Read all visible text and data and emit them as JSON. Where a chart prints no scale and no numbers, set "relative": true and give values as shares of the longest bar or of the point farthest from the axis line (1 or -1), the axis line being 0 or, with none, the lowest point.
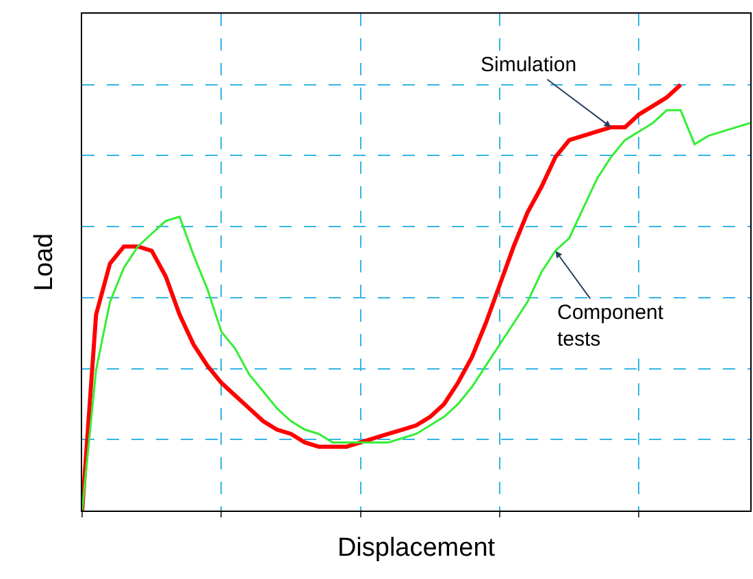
{
  "chart_data": {
    "type": "line",
    "relative": true,
    "xlabel": "Displacement",
    "ylabel": "Load",
    "grid": true,
    "legend": false,
    "marker": "none",
    "line_style": "solid",
    "categories": [
      null,
      null,
      null,
      null,
      null,
      null,
      null,
      null,
      null,
      null,
      null,
      null,
      null,
      null,
      null,
      null,
      null,
      null,
      null,
      null,
      null,
      null,
      null,
      null,
      null,
      null,
      null,
      null,
      null,
      null,
      null,
      null,
      null,
      null,
      null,
      null,
      null,
      null,
      null,
      null,
      null,
      null,
      null,
      null,
      null,
      null,
      null,
      null,
      null
    ],
    "series": [
      {
        "name": "Simulation",
        "color": "#ff0000",
        "values": [
          0,
          0.46,
          0.58,
          0.62,
          0.62,
          0.61,
          0.55,
          0.46,
          0.39,
          0.34,
          0.3,
          0.27,
          0.24,
          0.21,
          0.19,
          0.18,
          0.16,
          0.15,
          0.15,
          0.15,
          0.16,
          0.17,
          0.18,
          0.19,
          0.2,
          0.22,
          0.25,
          0.3,
          0.36,
          0.44,
          0.53,
          0.62,
          0.7,
          0.76,
          0.83,
          0.87,
          0.88,
          0.89,
          0.9,
          0.9,
          0.93,
          0.95,
          0.97,
          1.0,
          null,
          null,
          null,
          null,
          null
        ]
      },
      {
        "name": "Component tests",
        "color": "#33ee33",
        "values": [
          0,
          0.33,
          0.49,
          0.57,
          0.62,
          0.65,
          0.68,
          0.69,
          0.6,
          0.52,
          0.42,
          0.38,
          0.32,
          0.28,
          0.24,
          0.21,
          0.19,
          0.18,
          0.16,
          0.16,
          0.16,
          0.16,
          0.16,
          0.17,
          0.18,
          0.2,
          0.22,
          0.25,
          0.29,
          0.34,
          0.39,
          0.44,
          0.49,
          0.56,
          0.61,
          0.64,
          0.71,
          0.78,
          0.83,
          0.87,
          0.89,
          0.91,
          0.94,
          0.94,
          0.86,
          0.88,
          0.89,
          0.9,
          0.91
        ]
      }
    ]
  }
}
